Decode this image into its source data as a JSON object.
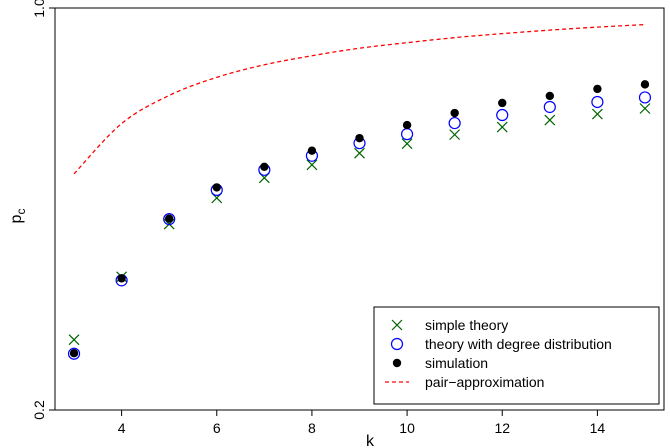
{
  "chart_data": {
    "type": "scatter",
    "title": "",
    "xlabel": "k",
    "ylabel": "p",
    "ylabel_subscript": "c",
    "xlim": [
      2.6,
      15.4
    ],
    "ylim": [
      0.2,
      1.0
    ],
    "x_ticks": [
      4,
      6,
      8,
      10,
      12,
      14
    ],
    "x_tick_labels": [
      "4",
      "6",
      "8",
      "10",
      "12",
      "14"
    ],
    "y_ticks": [
      0.2,
      1.0
    ],
    "y_tick_labels": [
      "0.2",
      "1.0"
    ],
    "grid": false,
    "legend_position": "bottom-right",
    "x": [
      3,
      4,
      5,
      6,
      7,
      8,
      9,
      10,
      11,
      12,
      13,
      14,
      15
    ],
    "series": [
      {
        "name": "simple theory",
        "marker": "x",
        "color": "#006400",
        "values": [
          0.34,
          0.465,
          0.57,
          0.622,
          0.662,
          0.688,
          0.711,
          0.73,
          0.748,
          0.763,
          0.777,
          0.789,
          0.8
        ]
      },
      {
        "name": "theory with degree distribution",
        "marker": "open-circle",
        "color": "#0000ff",
        "values": [
          0.312,
          0.458,
          0.58,
          0.638,
          0.678,
          0.706,
          0.731,
          0.749,
          0.771,
          0.787,
          0.803,
          0.813,
          0.822
        ]
      },
      {
        "name": "simulation",
        "marker": "filled-circle",
        "color": "#000000",
        "values": [
          0.313,
          0.462,
          0.581,
          0.643,
          0.684,
          0.716,
          0.741,
          0.767,
          0.791,
          0.811,
          0.825,
          0.839,
          0.848
        ]
      },
      {
        "name": "pair−approximation",
        "marker": "dashed-line",
        "color": "#ff0000",
        "curve": true,
        "values": [
          0.67,
          0.77,
          0.826,
          0.862,
          0.887,
          0.905,
          0.92,
          0.931,
          0.941,
          0.949,
          0.956,
          0.962,
          0.967
        ]
      }
    ]
  }
}
